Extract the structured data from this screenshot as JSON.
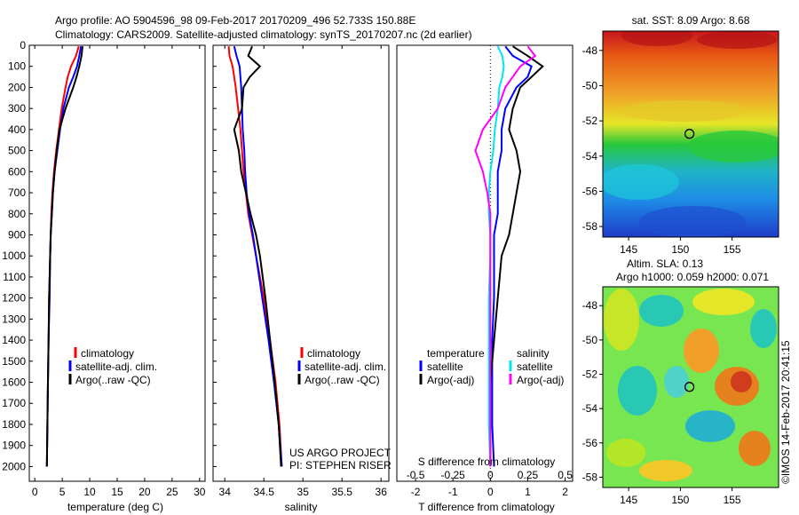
{
  "header": {
    "title_line1": "Argo profile: AO 5904596_98 09-Feb-2017 20170209_496 52.733S 150.88E",
    "title_line2": "Climatology: CARS2009. Satellite-adjusted climatology: synTS_20170207.nc (2d earlier)"
  },
  "colors": {
    "climatology": "#ff0000",
    "satellite": "#0000ff",
    "argo": "#000000",
    "salinity_satellite": "#00e5ee",
    "salinity_argo": "#ff00ff"
  },
  "panels": {
    "temperature": {
      "xlabel": "temperature (deg C)",
      "legend": [
        "climatology",
        "satellite-adj. clim.",
        "Argo(..raw -QC)"
      ]
    },
    "salinity": {
      "xlabel": "salinity",
      "legend": [
        "climatology",
        "satellite-adj. clim.",
        "Argo(..raw -QC)"
      ],
      "credit_line1": "US ARGO PROJECT",
      "credit_line2": "PI: STEPHEN RISER"
    },
    "difference": {
      "xlabel_top": "S difference from climatology",
      "xlabel_bottom": "T difference from climatology",
      "legend_col1_title": "temperature",
      "legend_col1": [
        "satellite",
        "Argo(-adj)"
      ],
      "legend_col2_title": "salinity",
      "legend_col2": [
        "satellite",
        "Argo(-adj)"
      ]
    },
    "sst_map": {
      "title": "sat. SST: 8.09 Argo: 8.68",
      "yticks": [
        "-48",
        "-50",
        "-52",
        "-54",
        "-56",
        "-58"
      ],
      "xticks": [
        "145",
        "150",
        "155"
      ]
    },
    "sla_map": {
      "title_line1": "Altim. SLA: 0.13",
      "title_line2": "Argo h1000: 0.059 h2000: 0.071",
      "yticks": [
        "-48",
        "-50",
        "-52",
        "-54",
        "-56",
        "-58"
      ],
      "xticks": [
        "145",
        "150",
        "155"
      ],
      "stamp": "©IMOS 14-Feb-2017 20:41:15"
    }
  },
  "chart_data": [
    {
      "type": "line",
      "panel": "temperature",
      "xlabel": "temperature (deg C)",
      "ylabel": "",
      "xlim": [
        -1,
        31
      ],
      "ylim": [
        2070,
        0
      ],
      "xticks": [
        0,
        5,
        10,
        15,
        20,
        25,
        30
      ],
      "yticks": [
        0,
        100,
        200,
        300,
        400,
        500,
        600,
        700,
        800,
        900,
        1000,
        1100,
        1200,
        1300,
        1400,
        1500,
        1600,
        1700,
        1800,
        1900,
        2000
      ],
      "depth": [
        5,
        50,
        100,
        150,
        200,
        300,
        400,
        500,
        600,
        700,
        800,
        900,
        1000,
        1200,
        1400,
        1600,
        1800,
        2000
      ],
      "series": [
        {
          "name": "climatology",
          "values": [
            8.0,
            7.5,
            6.6,
            6.0,
            5.6,
            4.9,
            4.4,
            3.9,
            3.5,
            3.2,
            3.0,
            2.9,
            2.8,
            2.6,
            2.5,
            2.4,
            2.3,
            2.2
          ]
        },
        {
          "name": "satellite-adj. clim.",
          "values": [
            8.4,
            8.1,
            7.7,
            7.0,
            6.2,
            5.2,
            4.6,
            4.1,
            3.6,
            3.3,
            3.1,
            2.9,
            2.8,
            2.7,
            2.5,
            2.4,
            2.3,
            2.2
          ]
        },
        {
          "name": "Argo(..raw -QC)",
          "values": [
            8.7,
            8.5,
            8.1,
            7.6,
            7.0,
            5.6,
            4.5,
            4.0,
            3.6,
            3.3,
            3.1,
            2.9,
            2.8,
            2.6,
            2.5,
            2.4,
            2.3,
            2.2
          ]
        }
      ]
    },
    {
      "type": "line",
      "panel": "salinity",
      "xlabel": "salinity",
      "xlim": [
        33.85,
        36.1
      ],
      "ylim": [
        2070,
        0
      ],
      "xticks": [
        34,
        34.5,
        35,
        35.5,
        36
      ],
      "depth": [
        5,
        50,
        100,
        150,
        200,
        300,
        400,
        500,
        600,
        700,
        800,
        900,
        1000,
        1200,
        1400,
        1600,
        1800,
        2000
      ],
      "series": [
        {
          "name": "climatology",
          "values": [
            34.05,
            34.06,
            34.1,
            34.12,
            34.14,
            34.17,
            34.2,
            34.22,
            34.24,
            34.27,
            34.3,
            34.35,
            34.4,
            34.5,
            34.58,
            34.65,
            34.7,
            34.73
          ]
        },
        {
          "name": "satellite-adj. clim.",
          "values": [
            34.12,
            34.15,
            34.19,
            34.2,
            34.21,
            34.22,
            34.23,
            34.25,
            34.26,
            34.28,
            34.31,
            34.36,
            34.4,
            34.48,
            34.56,
            34.63,
            34.69,
            34.73
          ]
        },
        {
          "name": "Argo(..raw -QC)",
          "values": [
            34.35,
            34.3,
            34.45,
            34.32,
            34.24,
            34.22,
            34.12,
            34.18,
            34.21,
            34.27,
            34.33,
            34.4,
            34.45,
            34.52,
            34.58,
            34.64,
            34.69,
            34.72
          ]
        }
      ]
    },
    {
      "type": "line",
      "panel": "difference",
      "xlabel": "T difference from climatology",
      "x2label": "S difference from climatology",
      "xlim": [
        -2.5,
        2.2
      ],
      "x2lim": [
        -0.625,
        0.55
      ],
      "ylim": [
        2070,
        0
      ],
      "xticks": [
        -2,
        -1,
        0,
        1,
        2
      ],
      "x2ticks": [
        -0.5,
        -0.25,
        0,
        0.25,
        0.5
      ],
      "depth": [
        5,
        50,
        100,
        150,
        200,
        300,
        400,
        500,
        600,
        700,
        800,
        900,
        1000,
        1200,
        1400,
        1600,
        1800,
        2000
      ],
      "series": [
        {
          "name": "temperature satellite",
          "axis": "T",
          "values": [
            0.4,
            0.6,
            1.1,
            1.0,
            0.7,
            0.4,
            0.3,
            0.3,
            0.2,
            0.2,
            0.2,
            0.1,
            0.1,
            0.1,
            0.05,
            0.05,
            0.05,
            0.1
          ]
        },
        {
          "name": "temperature Argo(-adj)",
          "axis": "T",
          "values": [
            0.6,
            1.0,
            1.4,
            1.1,
            0.8,
            0.6,
            0.5,
            0.7,
            0.8,
            0.7,
            0.6,
            0.5,
            0.3,
            0.2,
            0.1,
            0.0,
            0.0,
            0.0
          ]
        },
        {
          "name": "salinity satellite",
          "axis": "S",
          "values": [
            0.05,
            0.08,
            0.09,
            0.08,
            0.06,
            0.05,
            0.03,
            0.02,
            0.0,
            -0.01,
            -0.01,
            0.0,
            0.0,
            -0.01,
            -0.01,
            -0.01,
            -0.01,
            0.0
          ]
        },
        {
          "name": "salinity Argo(-adj)",
          "axis": "S",
          "values": [
            0.25,
            0.3,
            0.2,
            0.15,
            0.1,
            0.05,
            -0.05,
            -0.1,
            -0.05,
            -0.02,
            0.0,
            0.0,
            0.0,
            0.0,
            0.0,
            0.0,
            0.0,
            0.0
          ]
        }
      ]
    },
    {
      "type": "heatmap",
      "panel": "sst_map",
      "title": "sat. SST: 8.09 Argo: 8.68",
      "xlim": [
        142.5,
        159.5
      ],
      "ylim": [
        -58.6,
        -46.9
      ],
      "xticks": [
        145,
        150,
        155
      ],
      "yticks": [
        -48,
        -50,
        -52,
        -54,
        -56,
        -58
      ],
      "marker": {
        "lon": 150.88,
        "lat": -52.733
      }
    },
    {
      "type": "heatmap",
      "panel": "sla_map",
      "title": "Altim. SLA: 0.13",
      "xlim": [
        142.5,
        159.5
      ],
      "ylim": [
        -58.6,
        -46.9
      ],
      "xticks": [
        145,
        150,
        155
      ],
      "yticks": [
        -48,
        -50,
        -52,
        -54,
        -56,
        -58
      ],
      "marker": {
        "lon": 150.88,
        "lat": -52.733
      }
    }
  ]
}
